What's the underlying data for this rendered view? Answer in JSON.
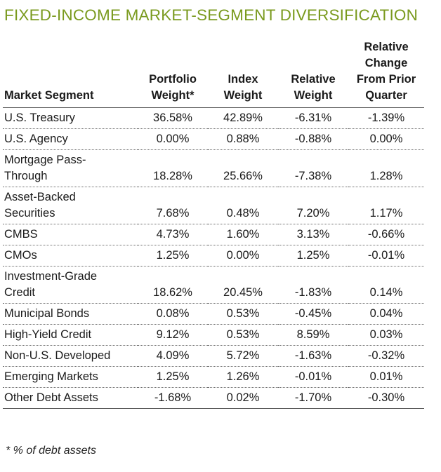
{
  "title": "FIXED-INCOME MARKET-SEGMENT DIVERSIFICATION",
  "accent_color": "#7a9a1e",
  "headers": {
    "segment": "Market Segment",
    "portfolio_line1": "Portfolio",
    "portfolio_line2": "Weight*",
    "index_line1": "Index",
    "index_line2": "Weight",
    "relative_line1": "Relative",
    "relative_line2": "Weight",
    "change_line1": "Relative",
    "change_line2": "Change",
    "change_line3": "From Prior",
    "change_line4": "Quarter"
  },
  "rows": [
    {
      "segment_line1": "U.S. Treasury",
      "segment_line2": "",
      "portfolio": "36.58%",
      "index": "42.89%",
      "relative": "-6.31%",
      "change": "-1.39%"
    },
    {
      "segment_line1": "U.S. Agency",
      "segment_line2": "",
      "portfolio": "0.00%",
      "index": "0.88%",
      "relative": "-0.88%",
      "change": "0.00%"
    },
    {
      "segment_line1": "Mortgage Pass-",
      "segment_line2": "Through",
      "portfolio": "18.28%",
      "index": "25.66%",
      "relative": "-7.38%",
      "change": "1.28%"
    },
    {
      "segment_line1": "Asset-Backed",
      "segment_line2": "Securities",
      "portfolio": "7.68%",
      "index": "0.48%",
      "relative": "7.20%",
      "change": "1.17%"
    },
    {
      "segment_line1": "CMBS",
      "segment_line2": "",
      "portfolio": "4.73%",
      "index": "1.60%",
      "relative": "3.13%",
      "change": "-0.66%"
    },
    {
      "segment_line1": "CMOs",
      "segment_line2": "",
      "portfolio": "1.25%",
      "index": "0.00%",
      "relative": "1.25%",
      "change": "-0.01%"
    },
    {
      "segment_line1": "Investment-Grade",
      "segment_line2": "Credit",
      "portfolio": "18.62%",
      "index": "20.45%",
      "relative": "-1.83%",
      "change": "0.14%"
    },
    {
      "segment_line1": "Municipal Bonds",
      "segment_line2": "",
      "portfolio": "0.08%",
      "index": "0.53%",
      "relative": "-0.45%",
      "change": "0.04%"
    },
    {
      "segment_line1": "High-Yield Credit",
      "segment_line2": "",
      "portfolio": "9.12%",
      "index": "0.53%",
      "relative": "8.59%",
      "change": "0.03%"
    },
    {
      "segment_line1": "Non-U.S. Developed",
      "segment_line2": "",
      "portfolio": "4.09%",
      "index": "5.72%",
      "relative": "-1.63%",
      "change": "-0.32%"
    },
    {
      "segment_line1": "Emerging Markets",
      "segment_line2": "",
      "portfolio": "1.25%",
      "index": "1.26%",
      "relative": "-0.01%",
      "change": "0.01%"
    },
    {
      "segment_line1": "Other Debt Assets",
      "segment_line2": "",
      "portfolio": "-1.68%",
      "index": "0.02%",
      "relative": "-1.70%",
      "change": "-0.30%"
    }
  ],
  "footnote": "* % of debt assets"
}
